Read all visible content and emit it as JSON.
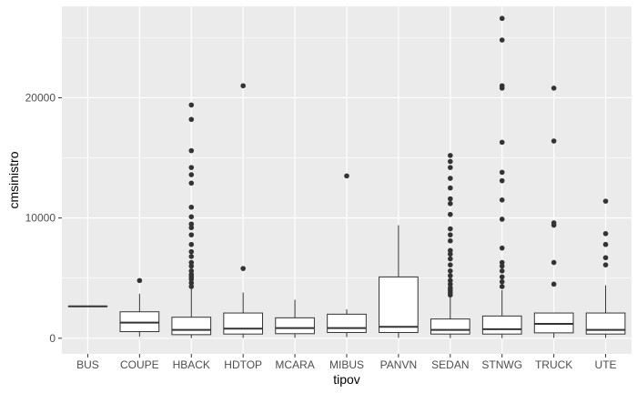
{
  "chart_data": {
    "type": "boxplot",
    "xlabel": "tipov",
    "ylabel": "cmsinistro",
    "ylim": [
      -1300,
      27600
    ],
    "y_ticks": [
      0,
      10000,
      20000
    ],
    "y_tick_labels": [
      "0",
      "10000",
      "20000"
    ],
    "grid": true,
    "colors": {
      "panel": "#ebebeb",
      "grid": "#ffffff",
      "box_fill": "#ffffff",
      "box_line": "#333333",
      "outlier": "#333333"
    },
    "categories": [
      "BUS",
      "COUPE",
      "HBACK",
      "HDTOP",
      "MCARA",
      "MIBUS",
      "PANVN",
      "SEDAN",
      "STNWG",
      "TRUCK",
      "UTE"
    ],
    "boxes": [
      {
        "category": "BUS",
        "q1": 2650,
        "median": 2650,
        "q3": 2650,
        "whisker_low": 2650,
        "whisker_high": 2650,
        "outliers": []
      },
      {
        "category": "COUPE",
        "q1": 550,
        "median": 1300,
        "q3": 2200,
        "whisker_low": 130,
        "whisker_high": 3700,
        "outliers": [
          4800
        ]
      },
      {
        "category": "HBACK",
        "q1": 300,
        "median": 700,
        "q3": 1750,
        "whisker_low": 10,
        "whisker_high": 4100,
        "outliers": [
          4300,
          4600,
          4900,
          5100,
          5300,
          5600,
          6000,
          6300,
          6800,
          7200,
          7800,
          8600,
          9200,
          9500,
          10100,
          10900,
          12900,
          13600,
          14200,
          15600,
          18200,
          19400
        ]
      },
      {
        "category": "HDTOP",
        "q1": 350,
        "median": 800,
        "q3": 2100,
        "whisker_low": 30,
        "whisker_high": 3800,
        "outliers": [
          5800,
          21000
        ]
      },
      {
        "category": "MCARA",
        "q1": 380,
        "median": 850,
        "q3": 1700,
        "whisker_low": 30,
        "whisker_high": 3200,
        "outliers": []
      },
      {
        "category": "MIBUS",
        "q1": 480,
        "median": 850,
        "q3": 2000,
        "whisker_low": 100,
        "whisker_high": 2400,
        "outliers": [
          13500
        ]
      },
      {
        "category": "PANVN",
        "q1": 480,
        "median": 950,
        "q3": 5100,
        "whisker_low": 30,
        "whisker_high": 9400,
        "outliers": []
      },
      {
        "category": "SEDAN",
        "q1": 350,
        "median": 700,
        "q3": 1600,
        "whisker_low": 10,
        "whisker_high": 3400,
        "outliers": [
          3600,
          3800,
          4000,
          4200,
          4500,
          4800,
          5200,
          5600,
          6100,
          6600,
          7000,
          7300,
          8100,
          8600,
          9100,
          10300,
          11200,
          11600,
          12500,
          13300,
          14200,
          14700,
          15200
        ]
      },
      {
        "category": "STNWG",
        "q1": 350,
        "median": 750,
        "q3": 1850,
        "whisker_low": 10,
        "whisker_high": 4000,
        "outliers": [
          4300,
          4700,
          5100,
          5600,
          6000,
          6300,
          7500,
          9900,
          11500,
          13100,
          13800,
          16300,
          20800,
          21000,
          24800,
          26600
        ]
      },
      {
        "category": "TRUCK",
        "q1": 450,
        "median": 1200,
        "q3": 2100,
        "whisker_low": 30,
        "whisker_high": 2100,
        "outliers": [
          4500,
          6300,
          9400,
          9600,
          16400,
          20800
        ]
      },
      {
        "category": "UTE",
        "q1": 350,
        "median": 700,
        "q3": 2100,
        "whisker_low": 30,
        "whisker_high": 4400,
        "outliers": [
          6100,
          6700,
          7800,
          8700,
          11400
        ]
      }
    ]
  }
}
